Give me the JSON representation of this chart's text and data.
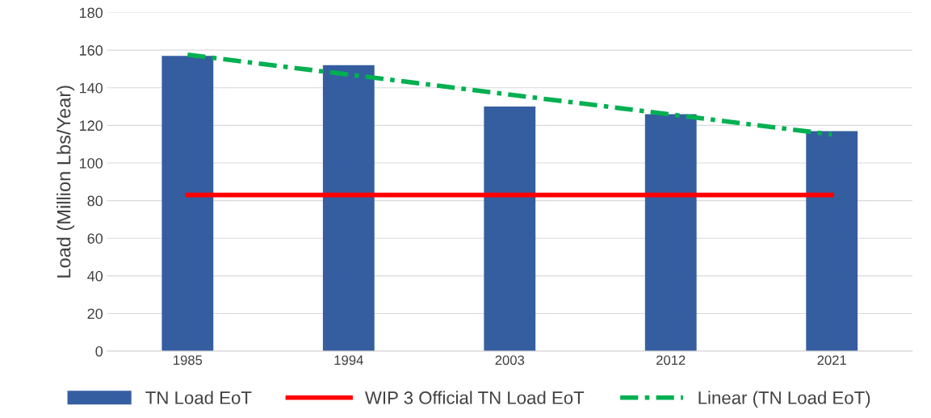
{
  "chart_data": {
    "type": "bar",
    "ylabel": "Load (Million Lbs/Year)",
    "categories": [
      "1985",
      "1994",
      "2003",
      "2012",
      "2021"
    ],
    "series": [
      {
        "name": "TN Load EoT",
        "color": "#355ea0",
        "values": [
          157,
          152,
          130,
          126,
          117
        ]
      },
      {
        "name": "WIP 3 Official TN Load EoT",
        "type": "line",
        "color": "#ff0000",
        "values": [
          83,
          83,
          83,
          83,
          83
        ],
        "line_style": "solid"
      },
      {
        "name": "Linear (TN Load EoT)",
        "type": "line",
        "color": "#00b050",
        "values": [
          157.6,
          147,
          136.4,
          125.8,
          115.2
        ],
        "line_style": "dashed"
      }
    ],
    "ylim": [
      0,
      180
    ],
    "yticks": [
      0,
      20,
      40,
      60,
      80,
      100,
      120,
      140,
      160,
      180
    ],
    "grid": "y",
    "legend": "bottom"
  }
}
